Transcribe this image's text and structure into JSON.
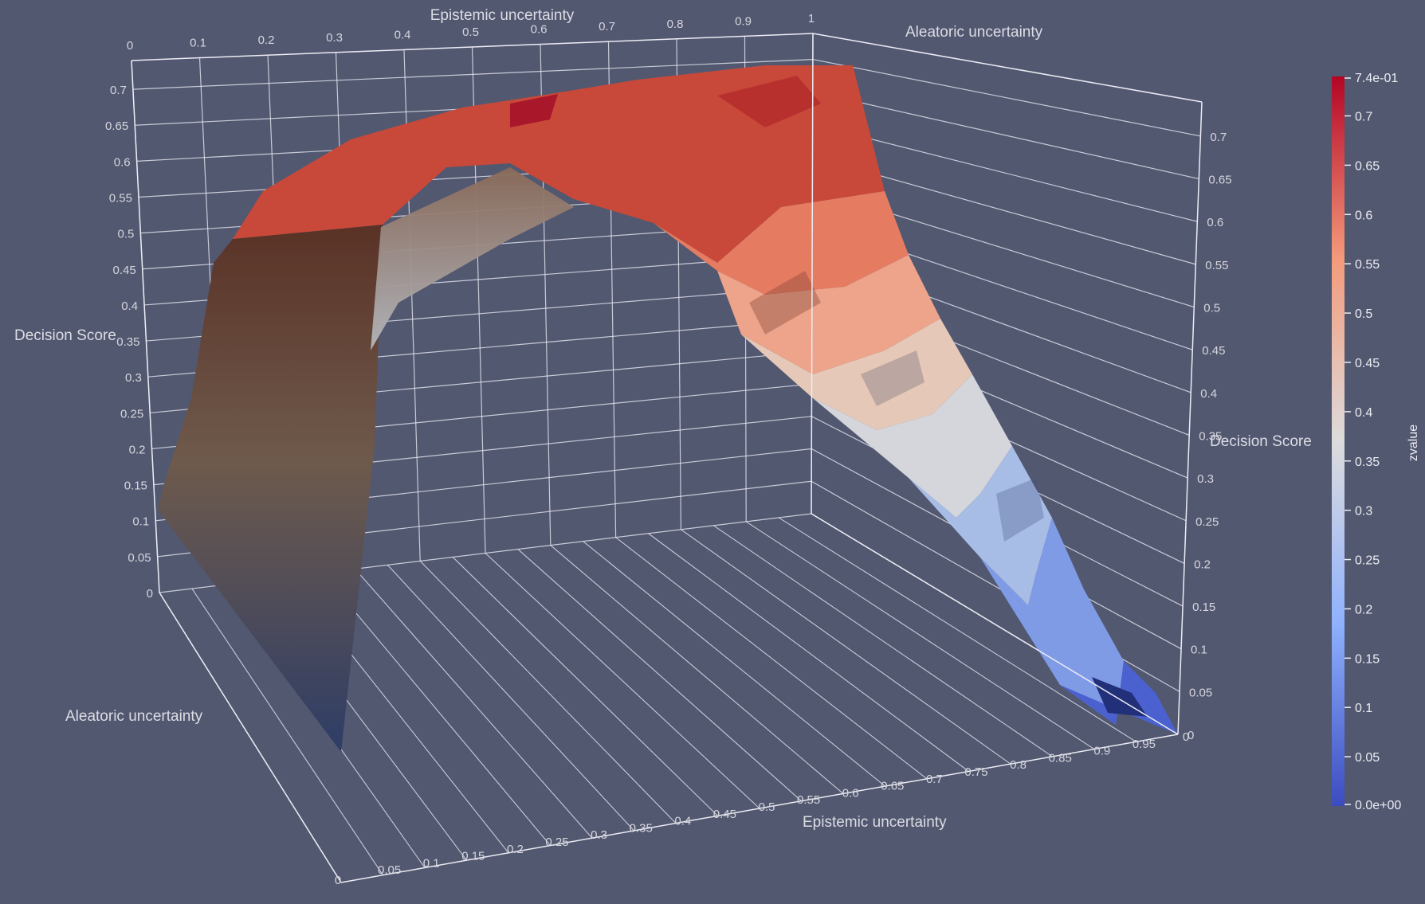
{
  "chart_data": {
    "type": "surface-3d",
    "colormap": "cool-to-warm",
    "x": {
      "label": "Epistemic uncertainty",
      "range": [
        0,
        1
      ],
      "ticks_back": [
        "0",
        "0.1",
        "0.2",
        "0.3",
        "0.4",
        "0.5",
        "0.6",
        "0.7",
        "0.8",
        "0.9",
        "1"
      ],
      "ticks_front": [
        "0.05",
        "0.1",
        "0.15",
        "0.2",
        "0.25",
        "0.3",
        "0.35",
        "0.4",
        "0.45",
        "0.5",
        "0.55",
        "0.6",
        "0.65",
        "0.7",
        "0.75",
        "0.8",
        "0.85",
        "0.9",
        "0.95",
        "0"
      ]
    },
    "y": {
      "label": "Aleatoric uncertainty",
      "range": [
        0,
        1
      ],
      "ticks_front": [
        "0",
        "0.05"
      ]
    },
    "z": {
      "label": "Decision Score",
      "range": [
        0,
        0.74
      ],
      "ticks_left": [
        "0",
        "0.05",
        "0.1",
        "0.15",
        "0.2",
        "0.25",
        "0.3",
        "0.35",
        "0.4",
        "0.45",
        "0.5",
        "0.55",
        "0.6",
        "0.65",
        "0.7"
      ],
      "ticks_right": [
        "0",
        "0.05",
        "0.1",
        "0.15",
        "0.2",
        "0.25",
        "0.3",
        "0.35",
        "0.4",
        "0.45",
        "0.5",
        "0.55",
        "0.6",
        "0.65",
        "0.7"
      ]
    },
    "colorbar": {
      "title": "zvalue",
      "min": 0,
      "max": 0.74,
      "min_label": "0.0e+00",
      "max_label": "7.4e-01",
      "ticks": [
        "0.05",
        "0.1",
        "0.15",
        "0.2",
        "0.25",
        "0.3",
        "0.35",
        "0.4",
        "0.45",
        "0.5",
        "0.55",
        "0.6",
        "0.65",
        "0.7"
      ]
    },
    "surface_profile": {
      "x": [
        0,
        0.1,
        0.2,
        0.3,
        0.4,
        0.5,
        0.6,
        0.7,
        0.8,
        0.9,
        1.0
      ],
      "z": [
        0.0,
        0.2,
        0.6,
        0.73,
        0.7,
        0.62,
        0.52,
        0.4,
        0.26,
        0.12,
        0.0
      ]
    }
  }
}
